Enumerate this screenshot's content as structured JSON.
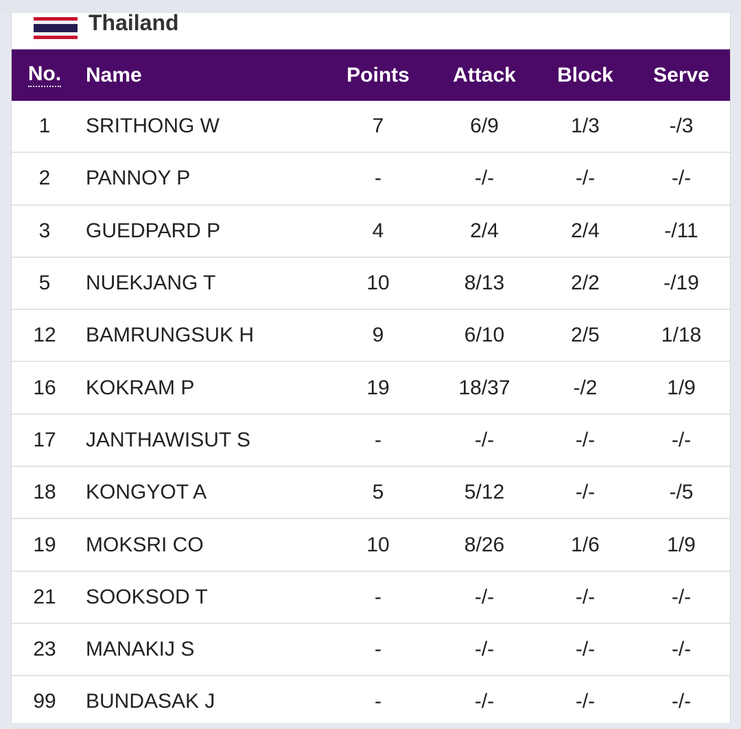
{
  "team": {
    "name": "Thailand",
    "flag_colors": [
      "#c8102e",
      "#f4f4f4",
      "#241d4f"
    ]
  },
  "table": {
    "headers": {
      "no": "No.",
      "name": "Name",
      "points": "Points",
      "attack": "Attack",
      "block": "Block",
      "serve": "Serve"
    },
    "header_color": "#4b0a67",
    "rows": [
      {
        "no": "1",
        "name": "SRITHONG W",
        "points": "7",
        "attack": "6/9",
        "block": "1/3",
        "serve": "-/3"
      },
      {
        "no": "2",
        "name": "PANNOY P",
        "points": "-",
        "attack": "-/-",
        "block": "-/-",
        "serve": "-/-"
      },
      {
        "no": "3",
        "name": "GUEDPARD P",
        "points": "4",
        "attack": "2/4",
        "block": "2/4",
        "serve": "-/11"
      },
      {
        "no": "5",
        "name": "NUEKJANG T",
        "points": "10",
        "attack": "8/13",
        "block": "2/2",
        "serve": "-/19"
      },
      {
        "no": "12",
        "name": "BAMRUNGSUK H",
        "points": "9",
        "attack": "6/10",
        "block": "2/5",
        "serve": "1/18"
      },
      {
        "no": "16",
        "name": "KOKRAM P",
        "points": "19",
        "attack": "18/37",
        "block": "-/2",
        "serve": "1/9"
      },
      {
        "no": "17",
        "name": "JANTHAWISUT S",
        "points": "-",
        "attack": "-/-",
        "block": "-/-",
        "serve": "-/-"
      },
      {
        "no": "18",
        "name": "KONGYOT A",
        "points": "5",
        "attack": "5/12",
        "block": "-/-",
        "serve": "-/5"
      },
      {
        "no": "19",
        "name": "MOKSRI CO",
        "points": "10",
        "attack": "8/26",
        "block": "1/6",
        "serve": "1/9"
      },
      {
        "no": "21",
        "name": "SOOKSOD T",
        "points": "-",
        "attack": "-/-",
        "block": "-/-",
        "serve": "-/-"
      },
      {
        "no": "23",
        "name": "MANAKIJ S",
        "points": "-",
        "attack": "-/-",
        "block": "-/-",
        "serve": "-/-"
      },
      {
        "no": "99",
        "name": "BUNDASAK J",
        "points": "-",
        "attack": "-/-",
        "block": "-/-",
        "serve": "-/-"
      }
    ]
  }
}
